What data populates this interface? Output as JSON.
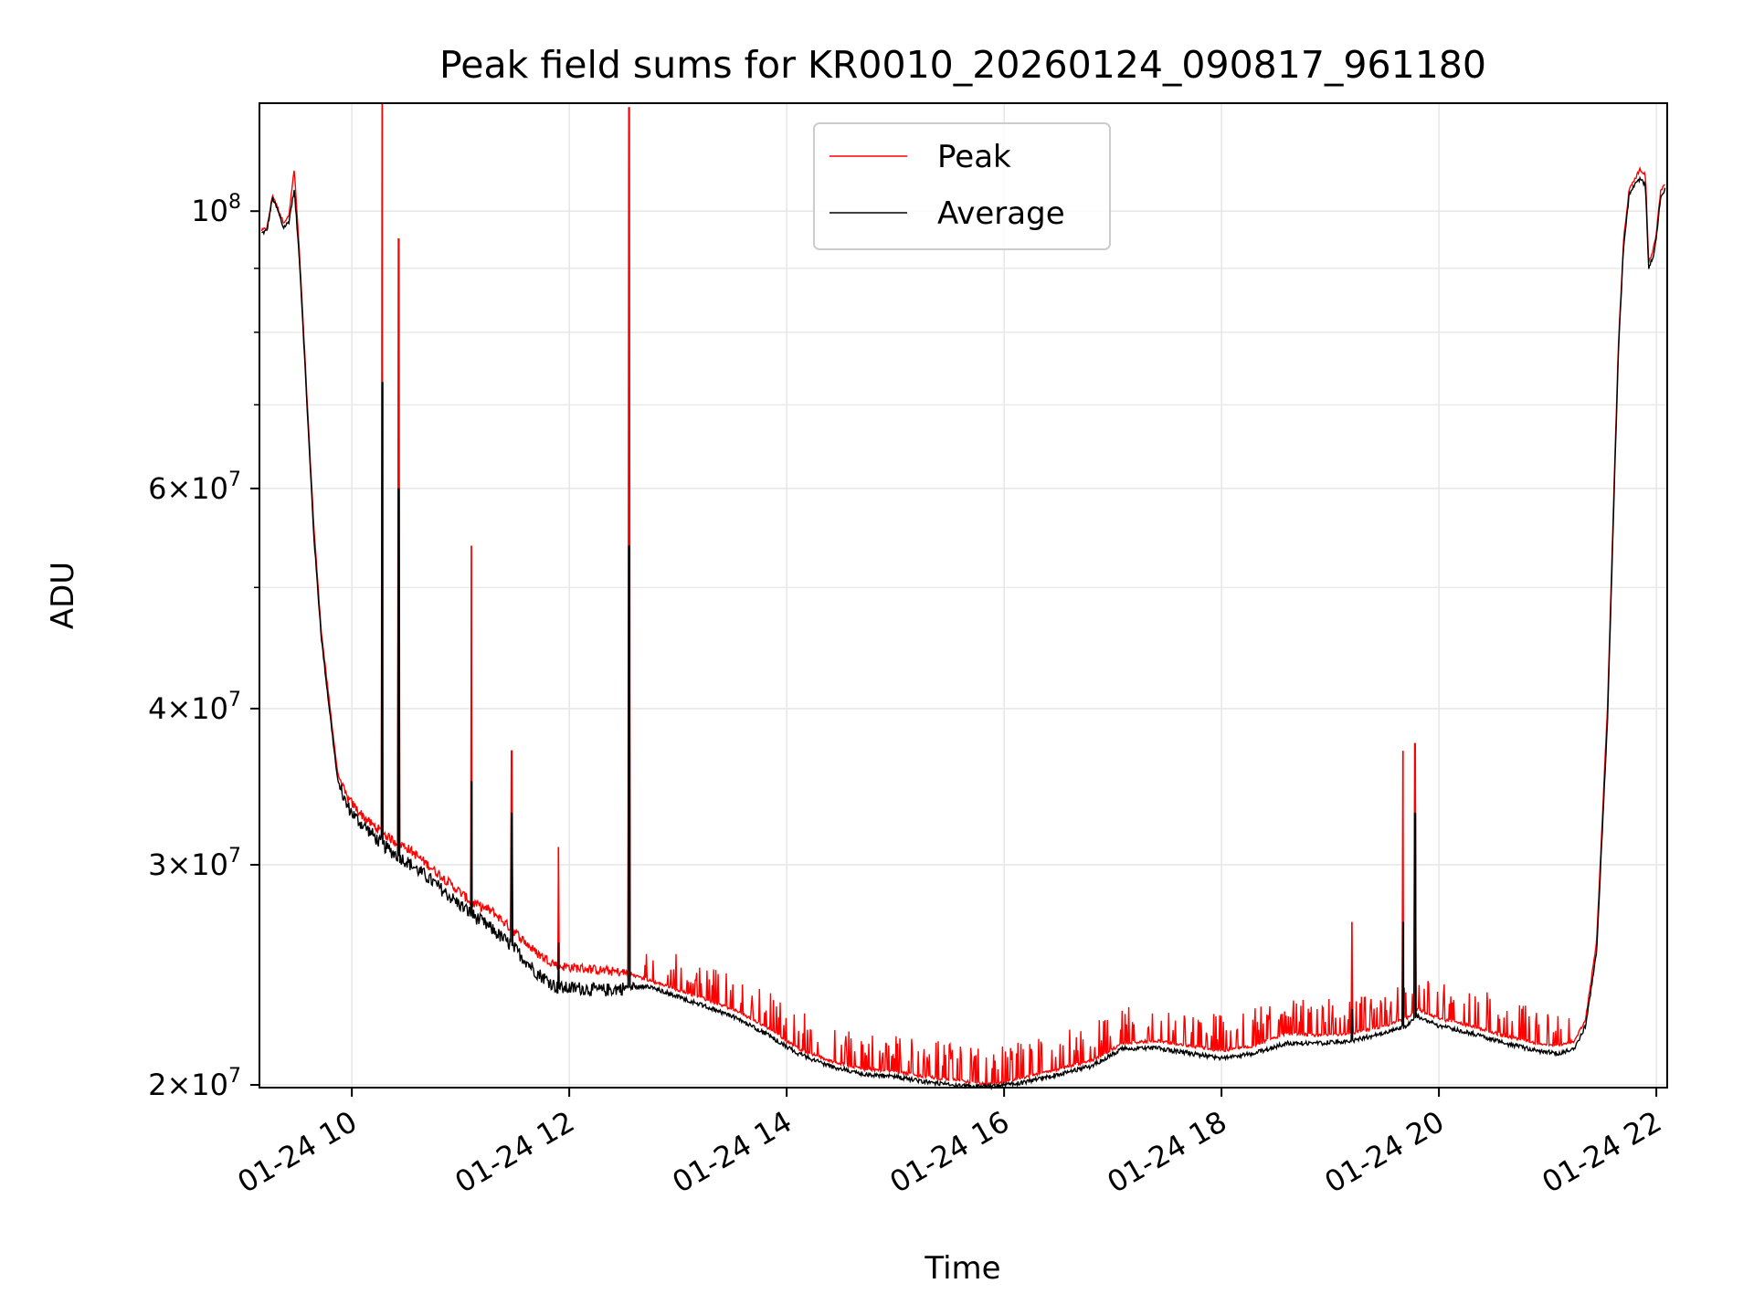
{
  "chart_data": {
    "type": "line",
    "title": "Peak field sums for KR0010_20260124_090817_961180",
    "xlabel": "Time",
    "ylabel": "ADU",
    "yscale": "log",
    "grid": true,
    "legend_position": "top-center",
    "xlim": [
      9.15,
      22.1
    ],
    "ylim": [
      19900000,
      122000000
    ],
    "x_ticks": [
      10,
      12,
      14,
      16,
      18,
      20,
      22
    ],
    "x_tick_labels": [
      "01-24 10",
      "01-24 12",
      "01-24 14",
      "01-24 16",
      "01-24 18",
      "01-24 20",
      "01-24 22"
    ],
    "y_ticks": [
      {
        "value": 20000000,
        "mantissa": "2",
        "base": "10",
        "exp": "7"
      },
      {
        "value": 30000000,
        "mantissa": "3",
        "base": "10",
        "exp": "7"
      },
      {
        "value": 40000000,
        "mantissa": "4",
        "base": "10",
        "exp": "7"
      },
      {
        "value": 60000000,
        "mantissa": "6",
        "base": "10",
        "exp": "7"
      },
      {
        "value": 100000000,
        "mantissa": "",
        "base": "10",
        "exp": "8"
      }
    ],
    "y_minor_ticks": [
      50000000,
      70000000,
      80000000,
      90000000
    ],
    "colors": {
      "peak": "#ff0000",
      "average": "#000000",
      "grid": "#e6e6e6"
    },
    "series": [
      {
        "name": "Peak",
        "color": "#ff0000",
        "x": [
          9.17,
          9.22,
          9.27,
          9.32,
          9.37,
          9.42,
          9.47,
          9.52,
          9.58,
          9.65,
          9.72,
          9.8,
          9.87,
          9.95,
          10.05,
          10.15,
          10.25,
          10.35,
          10.5,
          10.7,
          10.9,
          11.1,
          11.3,
          11.5,
          11.7,
          11.9,
          12.1,
          12.3,
          12.5,
          12.7,
          12.9,
          13.2,
          13.5,
          13.8,
          14.1,
          14.4,
          14.7,
          15.0,
          15.3,
          15.6,
          15.9,
          16.2,
          16.5,
          16.8,
          17.1,
          17.4,
          17.7,
          18.0,
          18.3,
          18.6,
          18.9,
          19.2,
          19.5,
          19.7,
          19.8,
          20.0,
          20.3,
          20.6,
          20.9,
          21.1,
          21.25,
          21.35,
          21.45,
          21.55,
          21.65,
          21.7,
          21.75,
          21.8,
          21.85,
          21.9,
          21.93,
          21.97,
          22.0,
          22.04,
          22.08
        ],
        "y": [
          96500000,
          97000000,
          103000000,
          100500000,
          98000000,
          99000000,
          108000000,
          92000000,
          73000000,
          56000000,
          46000000,
          40000000,
          35500000,
          34000000,
          33200000,
          32500000,
          32000000,
          31500000,
          31000000,
          30000000,
          29000000,
          28000000,
          27500000,
          26500000,
          25500000,
          24900000,
          24800000,
          24700000,
          24600000,
          24300000,
          24000000,
          23500000,
          23000000,
          22300000,
          21400000,
          20900000,
          20600000,
          20500000,
          20300000,
          20150000,
          20000000,
          20300000,
          20600000,
          20900000,
          21600000,
          21700000,
          21500000,
          21300000,
          21500000,
          22000000,
          21900000,
          22000000,
          22300000,
          22600000,
          23000000,
          22600000,
          22300000,
          21900000,
          21600000,
          21500000,
          21700000,
          22600000,
          26000000,
          40000000,
          78000000,
          95000000,
          104000000,
          106000000,
          108000000,
          107000000,
          91000000,
          93000000,
          96000000,
          104000000,
          105000000
        ]
      },
      {
        "name": "Average",
        "color": "#000000",
        "x": [
          9.17,
          9.22,
          9.27,
          9.32,
          9.37,
          9.42,
          9.47,
          9.52,
          9.58,
          9.65,
          9.72,
          9.8,
          9.87,
          9.95,
          10.05,
          10.15,
          10.25,
          10.35,
          10.5,
          10.7,
          10.9,
          11.1,
          11.3,
          11.5,
          11.7,
          11.9,
          12.1,
          12.3,
          12.5,
          12.7,
          12.9,
          13.2,
          13.5,
          13.8,
          14.1,
          14.4,
          14.7,
          15.0,
          15.3,
          15.6,
          15.9,
          16.2,
          16.5,
          16.8,
          17.1,
          17.4,
          17.7,
          18.0,
          18.3,
          18.6,
          18.9,
          19.2,
          19.5,
          19.7,
          19.8,
          20.0,
          20.3,
          20.6,
          20.9,
          21.1,
          21.25,
          21.35,
          21.45,
          21.55,
          21.65,
          21.7,
          21.75,
          21.8,
          21.85,
          21.9,
          21.93,
          21.97,
          22.0,
          22.04,
          22.08
        ],
        "y": [
          96000000,
          96500000,
          102500000,
          100000000,
          97000000,
          98000000,
          104000000,
          91000000,
          72000000,
          55000000,
          45500000,
          39500000,
          35000000,
          33500000,
          32600000,
          32000000,
          31300000,
          30800000,
          30200000,
          29300000,
          28300000,
          27400000,
          26600000,
          25700000,
          24600000,
          23900000,
          23900000,
          23800000,
          23900000,
          24000000,
          23700000,
          23200000,
          22700000,
          22000000,
          21200000,
          20700000,
          20400000,
          20300000,
          20100000,
          19950000,
          19950000,
          20100000,
          20400000,
          20700000,
          21400000,
          21400000,
          21200000,
          21000000,
          21200000,
          21600000,
          21600000,
          21700000,
          22000000,
          22300000,
          22700000,
          22300000,
          22000000,
          21600000,
          21300000,
          21200000,
          21400000,
          22300000,
          25500000,
          39000000,
          77000000,
          94000000,
          103000000,
          105000000,
          106000000,
          105000000,
          90000000,
          92000000,
          95000000,
          103000000,
          104000000
        ]
      }
    ],
    "spikes": [
      {
        "x": 10.28,
        "peak": 122000000,
        "average": 73000000
      },
      {
        "x": 10.43,
        "peak": 95000000,
        "average": 60000000
      },
      {
        "x": 11.1,
        "peak": 54000000,
        "average": 35000000
      },
      {
        "x": 11.47,
        "peak": 37000000,
        "average": 33000000
      },
      {
        "x": 11.9,
        "peak": 31000000,
        "average": 26000000
      },
      {
        "x": 12.55,
        "peak": 121000000,
        "average": 54000000
      },
      {
        "x": 19.2,
        "peak": 27000000,
        "average": 23000000
      },
      {
        "x": 19.67,
        "peak": 37000000,
        "average": 27000000
      },
      {
        "x": 19.78,
        "peak": 37500000,
        "average": 33000000
      }
    ],
    "legend": [
      {
        "label": "Peak",
        "color": "#ff0000"
      },
      {
        "label": "Average",
        "color": "#000000"
      }
    ]
  }
}
